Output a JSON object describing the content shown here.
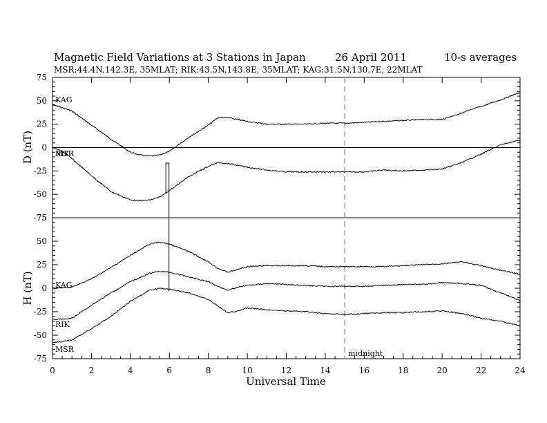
{
  "title": {
    "main": "Magnetic Field Variations at 3 Stations in Japan",
    "date": "26  April     2011",
    "avg": "10-s averages",
    "stations": "MSR:44.4N,142.3E, 35MLAT;  RIK:43.5N,143.8E, 35MLAT;  KAG:31.5N,130.7E, 22MLAT"
  },
  "chart_data": {
    "type": "line",
    "xlabel": "Universal Time",
    "xlim": [
      0,
      24
    ],
    "xticks": [
      0,
      2,
      4,
      6,
      8,
      10,
      12,
      14,
      16,
      18,
      20,
      22,
      24
    ],
    "annotation": {
      "text": "midnight",
      "x": 15
    },
    "panels": [
      {
        "name": "D",
        "ylabel": "D (nT)",
        "ylim": [
          -75,
          75
        ],
        "yticks": [
          75,
          50,
          25,
          0,
          -25,
          -50,
          -75
        ],
        "zero_line": true,
        "series_labels": [
          "KAG",
          "RIK",
          "MSR"
        ],
        "series": [
          {
            "name": "KAG",
            "x": [
              0,
              1,
              2,
              3,
              3.5,
              4,
              4.5,
              5,
              5.5,
              6,
              7,
              8,
              8.5,
              9,
              10,
              11,
              12,
              13,
              14,
              15,
              16,
              17,
              18,
              19,
              20,
              21,
              22,
              23,
              24
            ],
            "y": [
              46,
              39,
              24,
              9,
              2,
              -5,
              -8,
              -9,
              -8,
              -4,
              11,
              24,
              32,
              32,
              28,
              25,
              25,
              25,
              26,
              26,
              27,
              28,
              29,
              30,
              30,
              37,
              44,
              51,
              59
            ]
          },
          {
            "name": "MSR",
            "x": [
              0,
              0.5,
              1,
              2,
              3,
              4,
              4.5,
              5,
              5.5,
              6,
              7,
              8,
              8.5,
              9,
              10,
              11,
              12,
              13,
              14,
              15,
              16,
              17,
              18,
              19,
              20,
              21,
              22,
              22.5,
              23,
              24
            ],
            "y": [
              0,
              -4,
              -12,
              -30,
              -47,
              -56,
              -57,
              -56,
              -53,
              -46,
              -31,
              -20,
              -16,
              -17,
              -21,
              -24,
              -26,
              -26,
              -26,
              -26,
              -26,
              -24,
              -25,
              -24,
              -23,
              -16,
              -7,
              -2,
              3,
              8
            ]
          }
        ]
      },
      {
        "name": "H",
        "ylabel": "H (nT)",
        "ylim": [
          -75,
          75
        ],
        "yticks": [
          75,
          50,
          25,
          0,
          -25,
          -50,
          -75
        ],
        "series_labels": [
          "KAG",
          "RIK",
          "MSR"
        ],
        "series": [
          {
            "name": "KAG",
            "x": [
              0,
              1,
              2,
              3,
              4,
              5,
              5.5,
              6,
              7,
              8,
              8.5,
              9,
              9.5,
              10,
              11,
              12,
              13,
              14,
              15,
              16,
              17,
              18,
              19,
              20,
              21,
              22,
              23,
              24
            ],
            "y": [
              0,
              1,
              10,
              22,
              35,
              47,
              49,
              47,
              39,
              28,
              21,
              17,
              20,
              23,
              24,
              24,
              24,
              23,
              23,
              23,
              23,
              24,
              25,
              26,
              28,
              24,
              19,
              15
            ]
          },
          {
            "name": "RIK",
            "x": [
              0,
              0.5,
              1,
              2,
              3,
              4,
              5,
              5.5,
              6,
              7,
              8,
              8.5,
              9,
              9.5,
              10,
              11,
              12,
              13,
              14,
              15,
              16,
              17,
              18,
              19,
              20,
              21,
              22,
              23,
              24
            ],
            "y": [
              -33,
              -33,
              -32,
              -18,
              -5,
              7,
              16,
              18,
              17,
              12,
              7,
              2,
              -2,
              1,
              3,
              5,
              4,
              3,
              2,
              2,
              2,
              3,
              4,
              4,
              6,
              5,
              3,
              -5,
              -13
            ]
          },
          {
            "name": "MSR",
            "x": [
              0,
              0.5,
              1,
              2,
              3,
              4,
              5,
              5.5,
              6,
              7,
              8,
              8.5,
              9,
              9.5,
              10,
              11,
              12,
              13,
              14,
              15,
              16,
              17,
              18,
              19,
              20,
              21,
              22,
              23,
              24
            ],
            "y": [
              -58,
              -57,
              -55,
              -43,
              -30,
              -14,
              -2,
              0,
              -1,
              -5,
              -12,
              -19,
              -26,
              -24,
              -21,
              -23,
              -24,
              -25,
              -27,
              -28,
              -27,
              -26,
              -26,
              -25,
              -24,
              -27,
              -32,
              -35,
              -40
            ]
          }
        ]
      }
    ]
  }
}
